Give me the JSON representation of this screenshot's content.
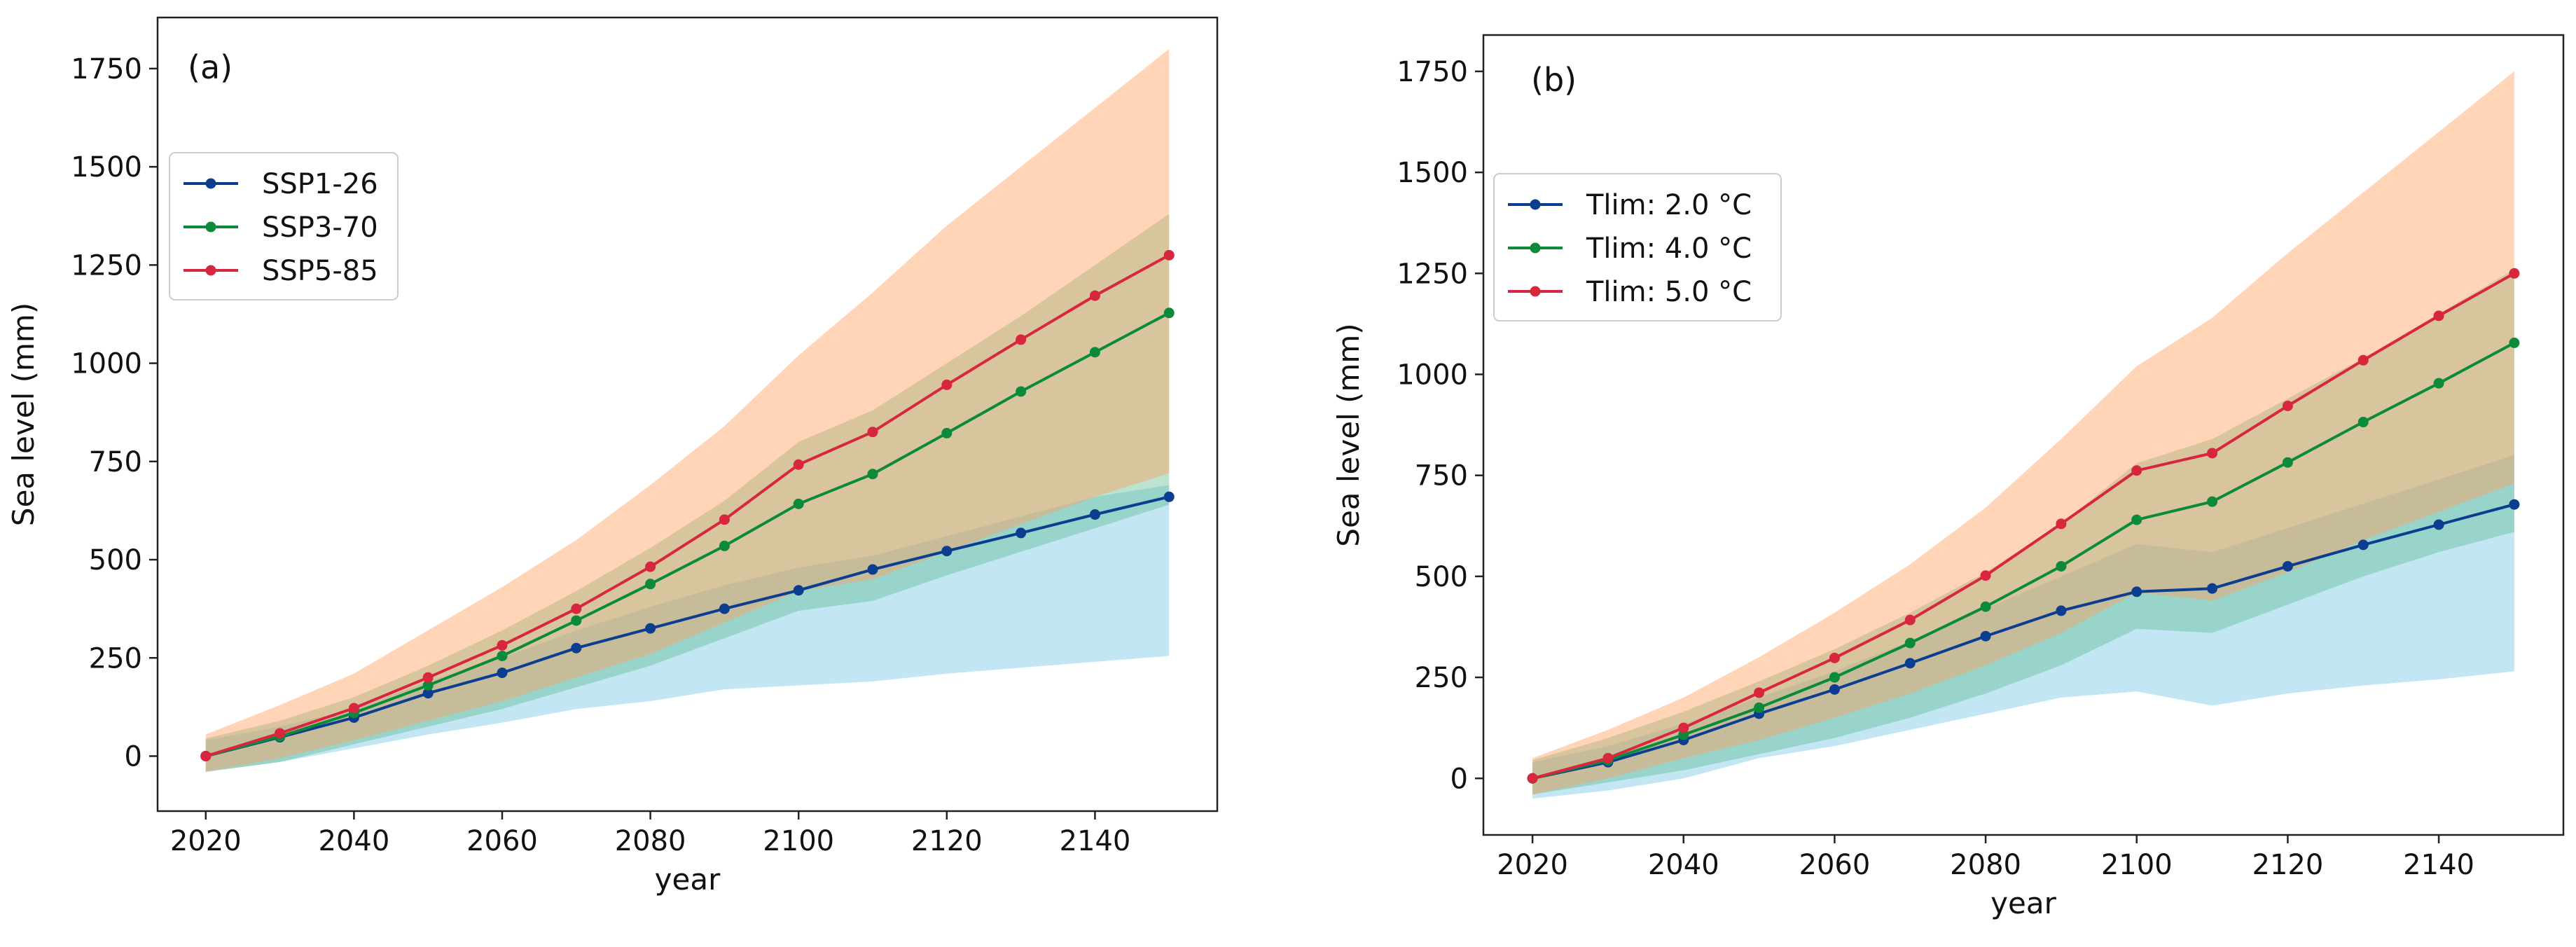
{
  "chart_data": [
    {
      "type": "line",
      "panel_label": "(a)",
      "title": "",
      "xlabel": "year",
      "ylabel": "Sea level (mm)",
      "xlim": [
        2013.5,
        2156.5
      ],
      "ylim": [
        -140,
        1880
      ],
      "xticks": [
        2020,
        2040,
        2060,
        2080,
        2100,
        2120,
        2140
      ],
      "yticks": [
        0,
        250,
        500,
        750,
        1000,
        1250,
        1500,
        1750
      ],
      "grid": false,
      "legend_position": "upper-left",
      "x": [
        2020,
        2030,
        2040,
        2050,
        2060,
        2070,
        2080,
        2090,
        2100,
        2110,
        2120,
        2130,
        2140,
        2150
      ],
      "series": [
        {
          "name": "SSP1-26",
          "color": "#0b3d91",
          "band_color": "#87ceeb",
          "values": [
            0,
            48,
            98,
            160,
            212,
            275,
            325,
            375,
            422,
            475,
            522,
            568,
            615,
            660
          ],
          "band_lower": [
            -40,
            -15,
            20,
            55,
            85,
            120,
            140,
            170,
            180,
            190,
            210,
            225,
            240,
            255
          ],
          "band_upper": [
            40,
            75,
            120,
            190,
            250,
            320,
            380,
            435,
            480,
            510,
            560,
            610,
            660,
            690
          ]
        },
        {
          "name": "SSP3-70",
          "color": "#0a8a3a",
          "band_color": "#5cbd8c",
          "values": [
            0,
            50,
            110,
            180,
            255,
            345,
            438,
            535,
            642,
            718,
            822,
            928,
            1028,
            1128
          ],
          "band_lower": [
            -40,
            -15,
            30,
            75,
            120,
            175,
            230,
            300,
            370,
            395,
            460,
            520,
            580,
            640
          ],
          "band_upper": [
            45,
            90,
            150,
            230,
            320,
            420,
            530,
            650,
            800,
            880,
            1000,
            1120,
            1250,
            1380
          ]
        },
        {
          "name": "SSP5-85",
          "color": "#d7263d",
          "band_color": "#ffa060",
          "values": [
            0,
            58,
            122,
            200,
            282,
            375,
            482,
            602,
            742,
            825,
            945,
            1060,
            1172,
            1275
          ],
          "band_lower": [
            -40,
            -5,
            40,
            90,
            140,
            200,
            260,
            340,
            420,
            450,
            520,
            590,
            660,
            720
          ],
          "band_upper": [
            55,
            130,
            210,
            320,
            430,
            550,
            690,
            840,
            1020,
            1180,
            1350,
            1500,
            1650,
            1800
          ]
        }
      ]
    },
    {
      "type": "line",
      "panel_label": "(b)",
      "title": "",
      "xlabel": "year",
      "ylabel": "Sea level (mm)",
      "xlim": [
        2013.5,
        2156.5
      ],
      "ylim": [
        -140,
        1840
      ],
      "xticks": [
        2020,
        2040,
        2060,
        2080,
        2100,
        2120,
        2140
      ],
      "yticks": [
        0,
        250,
        500,
        750,
        1000,
        1250,
        1500,
        1750
      ],
      "grid": false,
      "legend_position": "upper-left",
      "x": [
        2020,
        2030,
        2040,
        2050,
        2060,
        2070,
        2080,
        2090,
        2100,
        2110,
        2120,
        2130,
        2140,
        2150
      ],
      "series": [
        {
          "name": "Tlim: 2.0 °C",
          "color": "#0b3d91",
          "band_color": "#87ceeb",
          "values": [
            0,
            40,
            95,
            160,
            220,
            285,
            352,
            415,
            462,
            470,
            525,
            578,
            628,
            678
          ],
          "band_lower": [
            -50,
            -30,
            0,
            50,
            80,
            120,
            160,
            200,
            215,
            180,
            210,
            230,
            245,
            265
          ],
          "band_upper": [
            40,
            80,
            135,
            200,
            265,
            340,
            420,
            500,
            580,
            560,
            620,
            680,
            740,
            800
          ]
        },
        {
          "name": "Tlim: 4.0 °C",
          "color": "#0a8a3a",
          "band_color": "#5cbd8c",
          "values": [
            0,
            45,
            108,
            175,
            250,
            335,
            425,
            525,
            640,
            685,
            782,
            882,
            978,
            1078
          ],
          "band_lower": [
            -40,
            -10,
            20,
            60,
            100,
            150,
            210,
            280,
            370,
            360,
            430,
            500,
            560,
            610
          ],
          "band_upper": [
            45,
            100,
            165,
            240,
            320,
            410,
            510,
            630,
            780,
            840,
            940,
            1040,
            1150,
            1260
          ]
        },
        {
          "name": "Tlim: 5.0 °C",
          "color": "#d7263d",
          "band_color": "#ffa060",
          "values": [
            0,
            50,
            125,
            212,
            298,
            392,
            502,
            630,
            762,
            805,
            922,
            1035,
            1145,
            1250
          ],
          "band_lower": [
            -40,
            0,
            50,
            95,
            150,
            210,
            280,
            360,
            460,
            440,
            510,
            590,
            660,
            730
          ],
          "band_upper": [
            50,
            120,
            200,
            300,
            410,
            530,
            670,
            840,
            1020,
            1140,
            1300,
            1450,
            1600,
            1750
          ]
        }
      ]
    }
  ]
}
